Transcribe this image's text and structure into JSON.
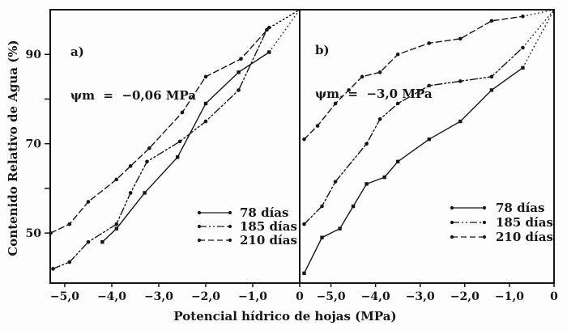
{
  "figure": {
    "x_axis_title": "Potencial hídrico de hojas (MPa)",
    "y_axis_title": "Contenido Relativo de Agua (%)",
    "ink_color": "#161616",
    "background_color": "#fdfdfd"
  },
  "chart_data": [
    {
      "type": "line",
      "panel_label": "a)",
      "condition_label": "ψm  =  −0,06 MPa",
      "xlabel": "Potencial hídrico de hojas (MPa)",
      "ylabel": "Contenido Relativo de Agua (%)",
      "xlim": [
        -5.31,
        0
      ],
      "ylim": [
        38.8,
        100
      ],
      "grid": false,
      "legend_position": "inside-lower-right",
      "last_segment_style": "dotted",
      "x_ticks": [
        {
          "v": -5,
          "label": "−5,0"
        },
        {
          "v": -4,
          "label": "−4,0"
        },
        {
          "v": -3,
          "label": "−3,0"
        },
        {
          "v": -2,
          "label": "−2,0"
        },
        {
          "v": -1,
          "label": "−1,0"
        },
        {
          "v": 0,
          "label": "0"
        }
      ],
      "y_ticks": [
        {
          "v": 50,
          "label": "50"
        },
        {
          "v": 60,
          "label": ""
        },
        {
          "v": 70,
          "label": "70"
        },
        {
          "v": 80,
          "label": ""
        },
        {
          "v": 90,
          "label": "90"
        }
      ],
      "series": [
        {
          "name": "78 días",
          "line": "solid",
          "marker": "square",
          "points": [
            [
              -4.2,
              48
            ],
            [
              -3.9,
              51
            ],
            [
              -3.3,
              59
            ],
            [
              -2.6,
              67
            ],
            [
              -2.0,
              79
            ],
            [
              -1.3,
              86
            ],
            [
              -0.65,
              90.5
            ],
            [
              0,
              100
            ]
          ]
        },
        {
          "name": "185 días",
          "line": "dashdotdot",
          "marker": "circle",
          "points": [
            [
              -5.25,
              42
            ],
            [
              -4.9,
              43.5
            ],
            [
              -4.5,
              48
            ],
            [
              -3.9,
              52
            ],
            [
              -3.6,
              59
            ],
            [
              -3.25,
              66
            ],
            [
              -2.55,
              70.5
            ],
            [
              -2.0,
              75
            ],
            [
              -1.3,
              82
            ],
            [
              -0.7,
              95.5
            ],
            [
              0,
              100
            ]
          ]
        },
        {
          "name": "210 días",
          "line": "dashed",
          "marker": "circle",
          "points": [
            [
              -5.3,
              50
            ],
            [
              -4.9,
              52
            ],
            [
              -4.5,
              57
            ],
            [
              -3.9,
              62
            ],
            [
              -3.6,
              65
            ],
            [
              -3.2,
              69
            ],
            [
              -2.5,
              77
            ],
            [
              -2.0,
              85
            ],
            [
              -1.25,
              89
            ],
            [
              -0.65,
              96
            ],
            [
              0,
              100
            ]
          ]
        }
      ]
    },
    {
      "type": "line",
      "panel_label": "b)",
      "condition_label": "ψm. =  −3,0 MPa",
      "xlabel": "Potencial hídrico de hojas (MPa)",
      "ylabel": "Contenido Relativo de Agua (%)",
      "xlim": [
        -5.7,
        0
      ],
      "ylim": [
        38.8,
        100
      ],
      "grid": false,
      "legend_position": "inside-lower-right",
      "last_segment_style": "dotted",
      "x_ticks": [
        {
          "v": -5,
          "label": "−5,0"
        },
        {
          "v": -4,
          "label": "−4,0"
        },
        {
          "v": -3,
          "label": "−3,0"
        },
        {
          "v": -2,
          "label": "−2,0"
        },
        {
          "v": -1,
          "label": "−1,0"
        },
        {
          "v": 0,
          "label": "0"
        }
      ],
      "y_ticks": [],
      "series": [
        {
          "name": "78 días",
          "line": "solid",
          "marker": "square",
          "points": [
            [
              -5.6,
              41
            ],
            [
              -5.2,
              49
            ],
            [
              -4.8,
              51
            ],
            [
              -4.5,
              56
            ],
            [
              -4.2,
              61
            ],
            [
              -3.8,
              62.5
            ],
            [
              -3.5,
              66
            ],
            [
              -2.8,
              71
            ],
            [
              -2.1,
              75
            ],
            [
              -1.4,
              82
            ],
            [
              -0.7,
              87
            ],
            [
              0,
              100
            ]
          ]
        },
        {
          "name": "185 días",
          "line": "dashdotdot",
          "marker": "circle",
          "points": [
            [
              -5.6,
              52
            ],
            [
              -5.2,
              56
            ],
            [
              -4.9,
              61.5
            ],
            [
              -4.2,
              70
            ],
            [
              -3.9,
              75.5
            ],
            [
              -3.5,
              79
            ],
            [
              -2.8,
              83
            ],
            [
              -2.1,
              84
            ],
            [
              -1.4,
              85
            ],
            [
              -0.7,
              91.5
            ],
            [
              0,
              100
            ]
          ]
        },
        {
          "name": "210 días",
          "line": "dashed",
          "marker": "circle",
          "points": [
            [
              -5.6,
              71
            ],
            [
              -5.3,
              74
            ],
            [
              -4.9,
              79
            ],
            [
              -4.6,
              82
            ],
            [
              -4.3,
              85
            ],
            [
              -3.9,
              86
            ],
            [
              -3.5,
              90
            ],
            [
              -2.8,
              92.5
            ],
            [
              -2.1,
              93.5
            ],
            [
              -1.4,
              97.5
            ],
            [
              -0.7,
              98.5
            ],
            [
              0,
              100
            ]
          ]
        }
      ]
    }
  ]
}
